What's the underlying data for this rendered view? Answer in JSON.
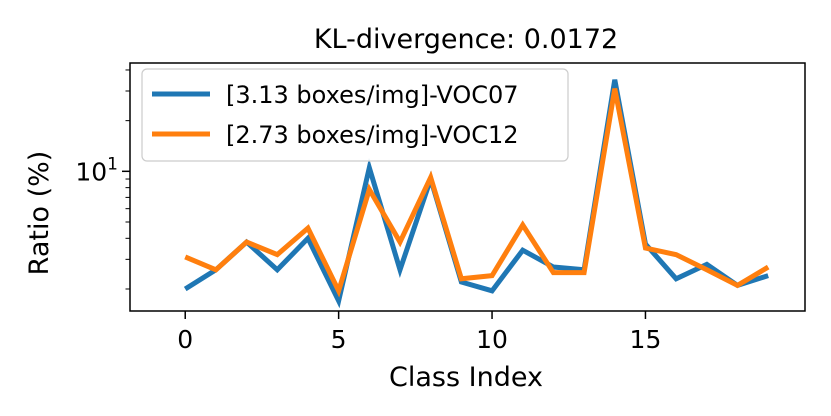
{
  "chart_data": {
    "type": "line",
    "title": "KL-divergence: 0.0172",
    "xlabel": "Class Index",
    "ylabel": "Ratio (%)",
    "yscale": "log",
    "x": [
      0,
      1,
      2,
      3,
      4,
      5,
      6,
      7,
      8,
      9,
      10,
      11,
      12,
      13,
      14,
      15,
      16,
      17,
      18,
      19
    ],
    "xlim": [
      -1.8,
      20.2
    ],
    "ylim": [
      1.48,
      44
    ],
    "xticks": [
      0,
      5,
      10,
      15
    ],
    "xtick_labels": [
      "0",
      "5",
      "10",
      "15"
    ],
    "ytick_major_label": "10",
    "ytick_major_exp": "1",
    "legend_position": "top-left",
    "series": [
      {
        "name": "[3.13 boxes/img]-VOC07",
        "color": "#1f77b4",
        "values": [
          2.0,
          2.6,
          3.8,
          2.6,
          4.0,
          1.7,
          10.5,
          2.6,
          9.0,
          2.2,
          1.95,
          3.4,
          2.7,
          2.6,
          35.0,
          3.7,
          2.3,
          2.8,
          2.1,
          2.4
        ]
      },
      {
        "name": "[2.73 boxes/img]-VOC12",
        "color": "#ff7f0e",
        "values": [
          3.1,
          2.6,
          3.8,
          3.2,
          4.6,
          1.95,
          7.8,
          3.8,
          9.2,
          2.3,
          2.4,
          4.8,
          2.5,
          2.5,
          31.0,
          3.5,
          3.2,
          2.6,
          2.1,
          2.7
        ]
      }
    ]
  }
}
